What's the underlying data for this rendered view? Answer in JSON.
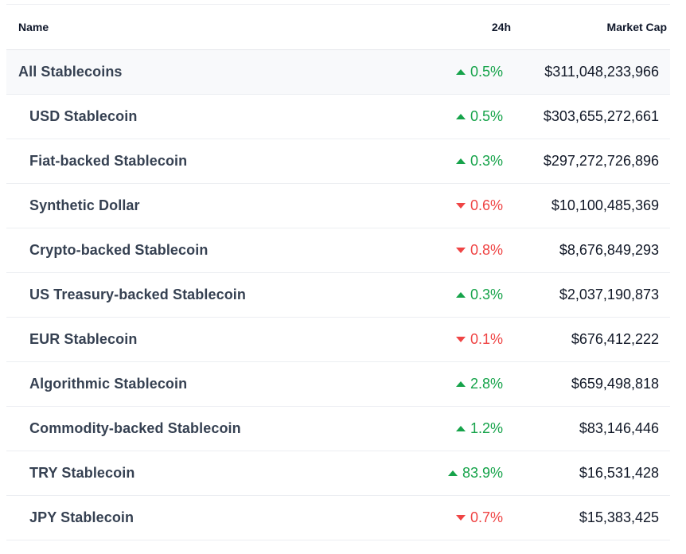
{
  "header": {
    "name": "Name",
    "change": "24h",
    "market_cap": "Market Cap"
  },
  "colors": {
    "up": "#16a34a",
    "down": "#ef4444"
  },
  "rows": [
    {
      "name": "All Stablecoins",
      "change": "0.5%",
      "direction": "up",
      "market_cap": "$311,048,233,966",
      "parent": true
    },
    {
      "name": "USD Stablecoin",
      "change": "0.5%",
      "direction": "up",
      "market_cap": "$303,655,272,661"
    },
    {
      "name": "Fiat-backed Stablecoin",
      "change": "0.3%",
      "direction": "up",
      "market_cap": "$297,272,726,896"
    },
    {
      "name": "Synthetic Dollar",
      "change": "0.6%",
      "direction": "down",
      "market_cap": "$10,100,485,369"
    },
    {
      "name": "Crypto-backed Stablecoin",
      "change": "0.8%",
      "direction": "down",
      "market_cap": "$8,676,849,293"
    },
    {
      "name": "US Treasury-backed Stablecoin",
      "change": "0.3%",
      "direction": "up",
      "market_cap": "$2,037,190,873"
    },
    {
      "name": "EUR Stablecoin",
      "change": "0.1%",
      "direction": "down",
      "market_cap": "$676,412,222"
    },
    {
      "name": "Algorithmic Stablecoin",
      "change": "2.8%",
      "direction": "up",
      "market_cap": "$659,498,818"
    },
    {
      "name": "Commodity-backed Stablecoin",
      "change": "1.2%",
      "direction": "up",
      "market_cap": "$83,146,446"
    },
    {
      "name": "TRY Stablecoin",
      "change": "83.9%",
      "direction": "up",
      "market_cap": "$16,531,428"
    },
    {
      "name": "JPY Stablecoin",
      "change": "0.7%",
      "direction": "down",
      "market_cap": "$15,383,425"
    }
  ]
}
